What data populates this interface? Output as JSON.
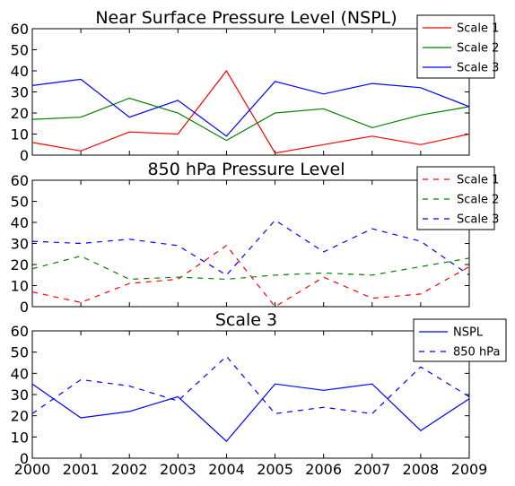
{
  "chart_data": [
    {
      "type": "line",
      "title": "Near Surface Pressure Level (NSPL)",
      "xlabel": "",
      "ylabel": "",
      "x": [
        2000,
        2001,
        2002,
        2003,
        2004,
        2005,
        2006,
        2007,
        2008,
        2009
      ],
      "xlim": [
        2000,
        2009
      ],
      "ylim": [
        0,
        60
      ],
      "yticks": [
        0,
        10,
        20,
        30,
        40,
        50,
        60
      ],
      "legend_position": "top-right",
      "series": [
        {
          "name": "Scale 1",
          "color": "#ff0000",
          "linestyle": "solid",
          "values": [
            6,
            2,
            11,
            10,
            40,
            1,
            5,
            9,
            5,
            10
          ]
        },
        {
          "name": "Scale 2",
          "color": "#008000",
          "linestyle": "solid",
          "values": [
            17,
            18,
            27,
            20,
            7,
            20,
            22,
            13,
            19,
            23
          ]
        },
        {
          "name": "Scale 3",
          "color": "#0000ff",
          "linestyle": "solid",
          "values": [
            33,
            36,
            18,
            26,
            9,
            35,
            29,
            34,
            32,
            23
          ]
        }
      ]
    },
    {
      "type": "line",
      "title": "850 hPa Pressure Level",
      "xlabel": "",
      "ylabel": "",
      "x": [
        2000,
        2001,
        2002,
        2003,
        2004,
        2005,
        2006,
        2007,
        2008,
        2009
      ],
      "xlim": [
        2000,
        2009
      ],
      "ylim": [
        0,
        60
      ],
      "yticks": [
        0,
        10,
        20,
        30,
        40,
        50,
        60
      ],
      "legend_position": "top-right",
      "series": [
        {
          "name": "Scale 1",
          "color": "#ff0000",
          "linestyle": "dashed",
          "values": [
            7,
            2,
            11,
            13,
            29,
            0,
            14,
            4,
            6,
            19
          ]
        },
        {
          "name": "Scale 2",
          "color": "#008000",
          "linestyle": "dashed",
          "values": [
            18,
            24,
            13,
            14,
            13,
            15,
            16,
            15,
            19,
            23
          ]
        },
        {
          "name": "Scale 3",
          "color": "#0000ff",
          "linestyle": "dashed",
          "values": [
            31,
            30,
            32,
            29,
            15,
            41,
            26,
            37,
            31,
            15
          ]
        }
      ]
    },
    {
      "type": "line",
      "title": "Scale 3",
      "xlabel": "",
      "ylabel": "",
      "x": [
        2000,
        2001,
        2002,
        2003,
        2004,
        2005,
        2006,
        2007,
        2008,
        2009
      ],
      "xticks": [
        "2000",
        "2001",
        "2002",
        "2003",
        "2004",
        "2005",
        "2006",
        "2007",
        "2008",
        "2009"
      ],
      "xlim": [
        2000,
        2009
      ],
      "ylim": [
        0,
        60
      ],
      "yticks": [
        0,
        10,
        20,
        30,
        40,
        50,
        60
      ],
      "legend_position": "top-right",
      "series": [
        {
          "name": "NSPL",
          "color": "#0000ff",
          "linestyle": "solid",
          "values": [
            35,
            19,
            22,
            29,
            8,
            35,
            32,
            35,
            13,
            28
          ]
        },
        {
          "name": "850 hPa",
          "color": "#0000ff",
          "linestyle": "dashed",
          "values": [
            21,
            37,
            34,
            27,
            48,
            21,
            24,
            21,
            43,
            29
          ]
        }
      ]
    }
  ]
}
